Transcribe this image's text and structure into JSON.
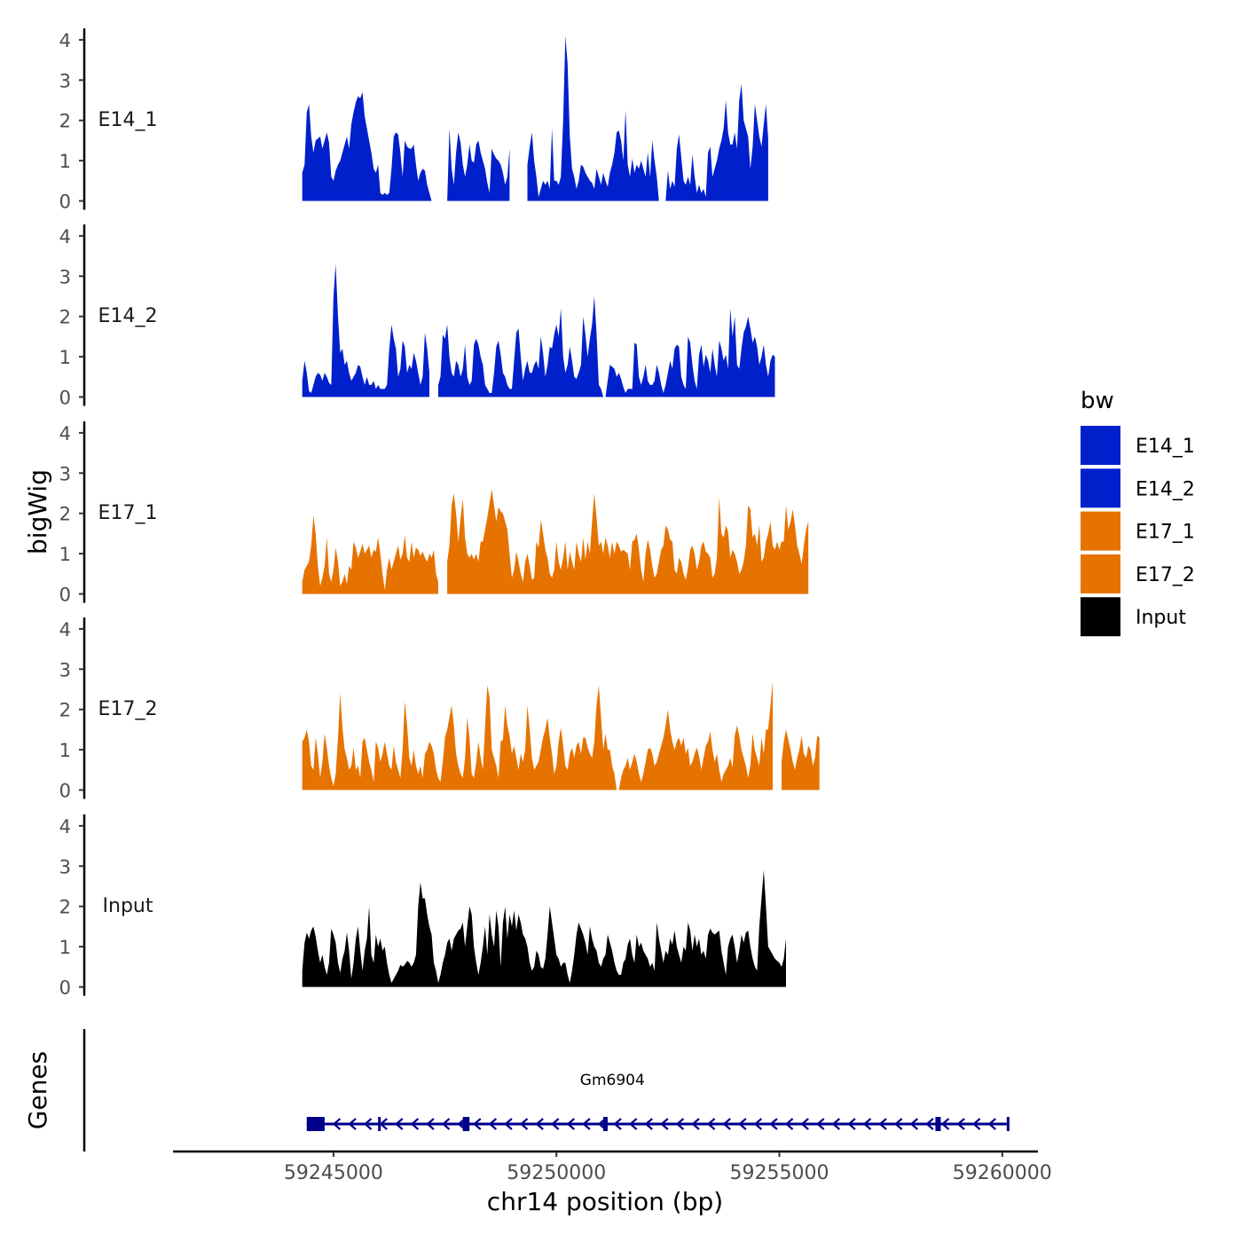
{
  "chart_data": {
    "type": "area",
    "ylabel": "bigWig",
    "genes_label": "Genes",
    "xlabel": "chr14 position (bp)",
    "xlim": [
      59241400,
      59260800
    ],
    "ylim": [
      0,
      4.3
    ],
    "y_ticks": [
      "0",
      "1",
      "2",
      "3",
      "4"
    ],
    "x_ticks": [
      {
        "value": 59245000,
        "label": "59245000"
      },
      {
        "value": 59250000,
        "label": "59250000"
      },
      {
        "value": 59255000,
        "label": "59255000"
      },
      {
        "value": 59260000,
        "label": "59260000"
      }
    ],
    "legend": {
      "title": "bw",
      "position": "right",
      "entries": [
        {
          "label": "E14_1",
          "color": "#0020CC"
        },
        {
          "label": "E14_2",
          "color": "#0020CC"
        },
        {
          "label": "E17_1",
          "color": "#E67300"
        },
        {
          "label": "E17_2",
          "color": "#E67300"
        },
        {
          "label": "Input",
          "color": "#000000"
        }
      ]
    },
    "x_start": 59244300,
    "x_step": 50,
    "series": [
      {
        "name": "E14_1",
        "color": "#0020CC",
        "gaps": [
          [
            59249000,
            59249300
          ],
          [
            59257800,
            59257900
          ]
        ],
        "values": [
          0.7,
          0.9,
          2.2,
          2.4,
          1.6,
          1.2,
          1.5,
          1.55,
          1.6,
          1.3,
          1.5,
          1.7,
          1.45,
          0.6,
          0.5,
          0.75,
          0.9,
          1.0,
          1.2,
          1.4,
          1.6,
          1.3,
          1.9,
          2.2,
          2.45,
          2.6,
          2.55,
          2.7,
          2.1,
          1.8,
          1.5,
          1.2,
          0.8,
          0.7,
          0.9,
          0.2,
          0.15,
          0.2,
          0.15,
          0.2,
          0.8,
          1.6,
          1.7,
          1.65,
          1.2,
          0.6,
          1.5,
          1.35,
          1.3,
          1.3,
          1.4,
          0.9,
          0.5,
          0.7,
          0.8,
          0.75,
          0.4,
          0.2,
          0.0,
          0.0,
          0.0,
          0.0,
          0.0,
          0.0,
          0.0,
          0.0,
          1.8,
          0.8,
          0.4,
          1.2,
          1.7,
          1.45,
          0.9,
          0.6,
          0.9,
          1.4,
          1.0,
          0.95,
          1.4,
          1.5,
          1.2,
          1.0,
          0.8,
          0.45,
          0.2,
          1.3,
          1.15,
          1.05,
          1.0,
          0.9,
          0.7,
          0.4,
          0.6,
          1.3,
          0.8,
          0.5,
          0.4,
          0.3,
          1.55,
          1.1,
          1.4,
          0.9,
          1.35,
          1.7,
          1.0,
          0.6,
          0.1,
          0.3,
          0.5,
          0.4,
          0.5,
          0.3,
          1.8,
          0.5,
          0.5,
          0.4,
          0.6,
          2.0,
          4.1,
          3.4,
          1.6,
          0.8,
          0.6,
          0.3,
          0.5,
          0.9,
          0.85,
          0.7,
          0.6,
          0.5,
          0.45,
          0.3,
          0.8,
          0.6,
          0.4,
          0.7,
          0.5,
          0.35,
          0.7,
          0.9,
          1.2,
          1.7,
          1.75,
          1.5,
          1.0,
          2.25,
          0.9,
          0.6,
          1.05,
          0.7,
          0.9,
          0.8,
          1.0,
          0.8,
          0.6,
          1.2,
          0.6,
          1.5,
          1.0,
          0.6,
          0.0,
          0.0,
          0.0,
          0.0,
          0.75,
          0.3,
          0.5,
          0.35,
          1.3,
          1.65,
          1.1,
          0.5,
          0.4,
          0.6,
          0.4,
          1.15,
          0.6,
          0.2,
          0.4,
          0.2,
          0.3,
          0.1,
          1.2,
          1.35,
          0.6,
          0.8,
          1.0,
          1.3,
          1.5,
          1.8,
          2.5,
          1.7,
          1.4,
          1.4,
          1.7,
          1.3,
          2.5,
          2.9,
          2.0,
          1.8,
          1.6,
          0.8,
          1.35,
          2.4,
          2.0,
          1.6,
          1.35,
          1.9,
          2.4,
          1.55
        ]
      },
      {
        "name": "E14_2",
        "color": "#0020CC",
        "gaps": [
          [
            59247200,
            59247300
          ],
          [
            59255600,
            59255800
          ],
          [
            59257300,
            59257700
          ]
        ],
        "values": [
          0.4,
          0.9,
          0.6,
          0.15,
          0.1,
          0.3,
          0.5,
          0.6,
          0.55,
          0.4,
          0.6,
          0.5,
          0.35,
          0.3,
          2.5,
          3.3,
          2.0,
          1.1,
          1.2,
          0.8,
          0.9,
          0.6,
          0.4,
          0.5,
          0.6,
          0.8,
          0.75,
          0.5,
          0.3,
          0.5,
          0.3,
          0.3,
          0.4,
          0.2,
          0.3,
          0.2,
          0.2,
          0.2,
          0.3,
          1.2,
          1.8,
          1.45,
          1.2,
          0.5,
          0.7,
          1.4,
          1.25,
          0.6,
          0.8,
          0.7,
          1.1,
          0.9,
          0.6,
          0.3,
          0.5,
          1.6,
          1.2,
          0.6,
          0.9,
          0.5,
          0.4,
          0.3,
          0.5,
          1.55,
          1.45,
          1.8,
          1.0,
          0.6,
          0.5,
          0.9,
          0.8,
          0.5,
          0.7,
          1.3,
          0.5,
          0.3,
          0.4,
          1.3,
          1.45,
          1.3,
          1.0,
          0.8,
          0.3,
          0.2,
          0.1,
          0.1,
          0.6,
          1.25,
          1.4,
          1.05,
          0.6,
          0.5,
          0.3,
          0.2,
          0.2,
          0.9,
          1.6,
          1.7,
          1.0,
          0.4,
          0.7,
          0.9,
          0.6,
          0.6,
          0.8,
          0.9,
          0.7,
          1.5,
          1.1,
          0.5,
          0.8,
          1.25,
          1.2,
          1.55,
          1.8,
          1.5,
          2.2,
          1.0,
          0.6,
          0.8,
          1.25,
          0.9,
          0.5,
          0.45,
          0.6,
          0.8,
          2.0,
          1.55,
          1.0,
          1.45,
          1.8,
          2.5,
          1.6,
          0.3,
          0.2,
          0.0,
          0.0,
          0.4,
          0.8,
          0.75,
          0.7,
          0.5,
          0.6,
          0.45,
          0.25,
          0.1,
          0.2,
          0.2,
          0.2,
          1.35,
          1.3,
          0.5,
          0.3,
          0.5,
          0.8,
          0.4,
          0.3,
          0.3,
          0.4,
          0.8,
          0.6,
          0.3,
          0.1,
          0.3,
          0.6,
          0.9,
          0.7,
          1.2,
          1.3,
          1.25,
          0.5,
          0.3,
          0.2,
          1.5,
          1.35,
          0.8,
          0.4,
          0.2,
          1.05,
          1.3,
          0.75,
          1.05,
          0.9,
          0.6,
          1.2,
          0.8,
          0.5,
          1.4,
          1.2,
          0.9,
          1.05,
          0.7,
          2.2,
          1.5,
          2.0,
          0.8,
          0.7,
          1.2,
          1.6,
          1.75,
          2.0,
          1.7,
          1.35,
          1.5,
          1.25,
          0.8,
          1.0,
          1.3,
          0.8,
          0.5,
          0.9,
          1.05,
          1.0
        ]
      },
      {
        "name": "E17_1",
        "color": "#E67300",
        "gaps": [
          [
            59247400,
            59247500
          ]
        ],
        "values": [
          0.3,
          0.6,
          0.7,
          0.8,
          1.2,
          1.95,
          1.5,
          0.7,
          0.2,
          0.4,
          0.7,
          1.4,
          0.5,
          0.3,
          0.6,
          1.15,
          0.8,
          0.2,
          0.3,
          0.5,
          0.25,
          0.7,
          0.6,
          1.3,
          1.15,
          0.9,
          1.05,
          1.25,
          1.0,
          1.1,
          1.2,
          0.9,
          1.1,
          1.05,
          1.4,
          1.0,
          0.5,
          0.1,
          0.6,
          0.9,
          0.6,
          0.8,
          1.0,
          1.2,
          0.85,
          1.0,
          1.45,
          0.9,
          0.8,
          1.3,
          0.9,
          1.15,
          1.1,
          0.95,
          1.05,
          0.9,
          0.8,
          1.0,
          0.9,
          1.1,
          0.5,
          0.3,
          0.9,
          1.05,
          1.0,
          0.8,
          1.2,
          2.2,
          2.5,
          2.0,
          1.3,
          1.9,
          2.35,
          1.4,
          1.0,
          0.9,
          1.0,
          0.85,
          1.0,
          0.8,
          1.3,
          1.3,
          1.6,
          1.9,
          2.25,
          2.6,
          2.2,
          1.8,
          2.15,
          2.05,
          2.0,
          1.8,
          1.6,
          1.0,
          0.4,
          0.6,
          1.05,
          0.8,
          0.5,
          0.3,
          0.8,
          1.0,
          0.7,
          0.35,
          0.4,
          1.3,
          1.15,
          1.85,
          1.5,
          1.1,
          0.9,
          0.5,
          0.4,
          0.6,
          1.3,
          0.8,
          0.6,
          0.9,
          1.3,
          0.6,
          1.05,
          0.8,
          0.6,
          1.3,
          1.0,
          0.8,
          1.4,
          0.85,
          1.3,
          1.0,
          1.8,
          2.5,
          1.9,
          1.2,
          1.3,
          1.0,
          1.4,
          1.2,
          0.9,
          1.3,
          1.0,
          1.3,
          1.2,
          1.05,
          1.1,
          1.05,
          1.0,
          0.6,
          1.3,
          1.35,
          1.5,
          1.1,
          0.6,
          0.3,
          1.0,
          1.35,
          1.1,
          0.7,
          0.4,
          0.5,
          0.8,
          1.1,
          1.2,
          1.7,
          1.6,
          1.35,
          1.3,
          0.6,
          0.5,
          0.9,
          0.8,
          0.5,
          0.35,
          0.65,
          1.1,
          1.2,
          1.0,
          0.6,
          0.8,
          1.2,
          1.3,
          1.05,
          1.0,
          0.9,
          0.4,
          0.5,
          0.9,
          2.4,
          1.5,
          1.4,
          1.7,
          1.55,
          0.9,
          1.1,
          1.0,
          0.8,
          0.5,
          0.6,
          0.8,
          1.2,
          2.2,
          2.1,
          1.4,
          1.5,
          1.2,
          1.7,
          0.8,
          0.9,
          1.3,
          1.5,
          1.8,
          1.2,
          1.1,
          1.3,
          1.1,
          1.3,
          1.3,
          2.2,
          1.6,
          1.8,
          2.1,
          1.7,
          1.2,
          1.0,
          0.75,
          1.2,
          1.6,
          1.8
        ]
      },
      {
        "name": "E17_2",
        "color": "#E67300",
        "gaps": [
          [
            59254900,
            59255000
          ]
        ],
        "values": [
          1.2,
          1.3,
          1.5,
          1.2,
          0.6,
          0.5,
          1.3,
          0.9,
          0.3,
          0.7,
          1.4,
          1.05,
          0.6,
          0.3,
          0.1,
          0.4,
          1.3,
          2.4,
          1.55,
          1.0,
          0.8,
          0.5,
          0.6,
          1.05,
          0.5,
          0.6,
          0.3,
          1.2,
          1.3,
          1.0,
          0.7,
          0.5,
          0.2,
          1.2,
          1.05,
          0.7,
          0.9,
          1.2,
          0.9,
          0.6,
          0.5,
          1.1,
          0.7,
          0.5,
          0.3,
          1.0,
          2.2,
          1.6,
          0.8,
          0.6,
          1.0,
          0.6,
          0.4,
          0.6,
          0.3,
          0.9,
          1.0,
          1.2,
          1.1,
          0.9,
          0.5,
          0.3,
          0.2,
          0.7,
          1.3,
          1.5,
          1.8,
          2.1,
          1.6,
          0.9,
          0.6,
          0.4,
          0.3,
          0.8,
          1.8,
          1.3,
          0.4,
          0.3,
          0.7,
          1.2,
          0.8,
          0.5,
          1.6,
          2.6,
          2.3,
          1.0,
          0.8,
          0.6,
          0.3,
          1.2,
          1.25,
          2.1,
          1.6,
          1.35,
          0.9,
          1.1,
          0.8,
          0.5,
          0.9,
          0.7,
          1.0,
          2.1,
          1.5,
          0.8,
          0.5,
          0.6,
          0.7,
          1.0,
          1.3,
          1.5,
          1.8,
          1.3,
          0.9,
          0.4,
          0.6,
          1.2,
          1.55,
          1.1,
          0.6,
          0.5,
          0.9,
          1.05,
          0.8,
          1.1,
          1.2,
          0.9,
          1.3,
          1.3,
          1.05,
          0.9,
          0.8,
          1.2,
          2.1,
          2.6,
          1.8,
          1.0,
          1.4,
          1.0,
          1.0,
          0.6,
          0.4,
          0.0,
          0.0,
          0.3,
          0.5,
          0.6,
          0.8,
          0.5,
          0.7,
          0.9,
          0.7,
          0.4,
          0.2,
          0.4,
          0.7,
          1.0,
          1.05,
          0.9,
          0.6,
          0.7,
          0.9,
          1.1,
          1.3,
          1.6,
          2.0,
          1.5,
          1.2,
          1.0,
          1.2,
          1.3,
          1.1,
          1.3,
          0.9,
          1.05,
          0.6,
          0.7,
          0.9,
          1.05,
          0.85,
          0.5,
          0.8,
          1.1,
          1.2,
          1.45,
          1.0,
          0.7,
          0.9,
          0.5,
          0.2,
          0.4,
          0.5,
          0.6,
          0.8,
          0.55,
          1.35,
          1.6,
          1.35,
          1.0,
          0.8,
          0.6,
          0.3,
          0.6,
          1.4,
          1.0,
          0.8,
          0.6,
          1.3,
          0.9,
          1.5,
          1.5,
          2.1,
          2.7,
          1.3,
          1.0,
          1.2,
          0.7,
          1.2,
          1.5,
          1.25,
          1.0,
          0.7,
          0.5,
          0.8,
          1.0,
          1.35,
          0.9,
          0.8,
          1.1,
          1.0,
          0.6,
          0.8,
          1.35,
          1.3
        ]
      },
      {
        "name": "Input",
        "color": "#000000",
        "gaps": [],
        "values": [
          0.4,
          1.1,
          1.35,
          1.2,
          1.4,
          1.5,
          1.25,
          0.9,
          0.6,
          0.8,
          0.5,
          0.3,
          0.6,
          1.45,
          1.3,
          1.1,
          0.6,
          0.35,
          0.7,
          0.9,
          1.35,
          0.9,
          0.2,
          0.6,
          1.2,
          1.5,
          0.9,
          0.4,
          0.9,
          1.2,
          2.0,
          0.8,
          0.6,
          1.3,
          1.0,
          1.2,
          0.9,
          1.0,
          0.6,
          0.3,
          0.1,
          0.2,
          0.3,
          0.4,
          0.55,
          0.5,
          0.55,
          0.65,
          0.6,
          0.5,
          0.6,
          0.8,
          2.0,
          2.6,
          2.2,
          2.2,
          1.8,
          1.5,
          1.3,
          0.6,
          0.4,
          0.1,
          0.3,
          0.6,
          0.8,
          1.1,
          1.2,
          0.9,
          1.2,
          1.3,
          1.4,
          1.45,
          1.6,
          1.0,
          1.5,
          2.0,
          1.8,
          1.0,
          0.6,
          0.3,
          0.6,
          1.0,
          1.5,
          0.8,
          1.8,
          1.3,
          1.0,
          1.9,
          1.5,
          0.5,
          1.6,
          2.0,
          1.2,
          1.8,
          1.5,
          1.9,
          1.4,
          1.8,
          1.6,
          1.3,
          1.2,
          1.0,
          0.6,
          0.4,
          0.5,
          0.9,
          0.8,
          0.5,
          0.45,
          0.7,
          1.3,
          2.0,
          1.6,
          1.2,
          0.8,
          0.7,
          0.5,
          0.6,
          0.6,
          0.3,
          0.1,
          0.4,
          0.8,
          1.3,
          1.6,
          1.45,
          1.3,
          1.1,
          0.8,
          1.5,
          1.2,
          1.0,
          0.9,
          0.6,
          0.5,
          0.7,
          0.8,
          1.3,
          1.1,
          0.9,
          0.6,
          0.4,
          0.3,
          0.3,
          0.6,
          0.7,
          1.05,
          1.2,
          0.8,
          0.6,
          1.3,
          1.0,
          1.1,
          0.9,
          0.8,
          0.7,
          0.5,
          0.6,
          0.4,
          1.6,
          1.2,
          0.9,
          0.6,
          0.9,
          0.8,
          1.2,
          1.05,
          1.4,
          1.0,
          0.8,
          0.6,
          1.0,
          0.9,
          1.6,
          1.4,
          0.9,
          1.3,
          1.0,
          1.2,
          0.8,
          0.9,
          0.7,
          1.3,
          1.45,
          1.35,
          1.3,
          1.35,
          1.4,
          0.9,
          0.6,
          0.3,
          1.0,
          1.2,
          1.3,
          1.0,
          0.6,
          0.9,
          1.3,
          1.1,
          1.35,
          1.4,
          1.0,
          0.7,
          0.5,
          0.4,
          1.5,
          2.2,
          2.9,
          2.0,
          1.0,
          0.9,
          0.8,
          0.7,
          0.65,
          0.6,
          0.5,
          0.7,
          1.2
        ]
      }
    ],
    "genes": {
      "name": "Gm6904",
      "strand": "-",
      "start": 59244400,
      "end": 59260100,
      "exons": [
        [
          59244400,
          59244800
        ],
        [
          59246000,
          59246050
        ],
        [
          59247900,
          59248050
        ],
        [
          59251050,
          59251150
        ],
        [
          59258500,
          59258620
        ],
        [
          59260100,
          59260120
        ]
      ]
    }
  }
}
